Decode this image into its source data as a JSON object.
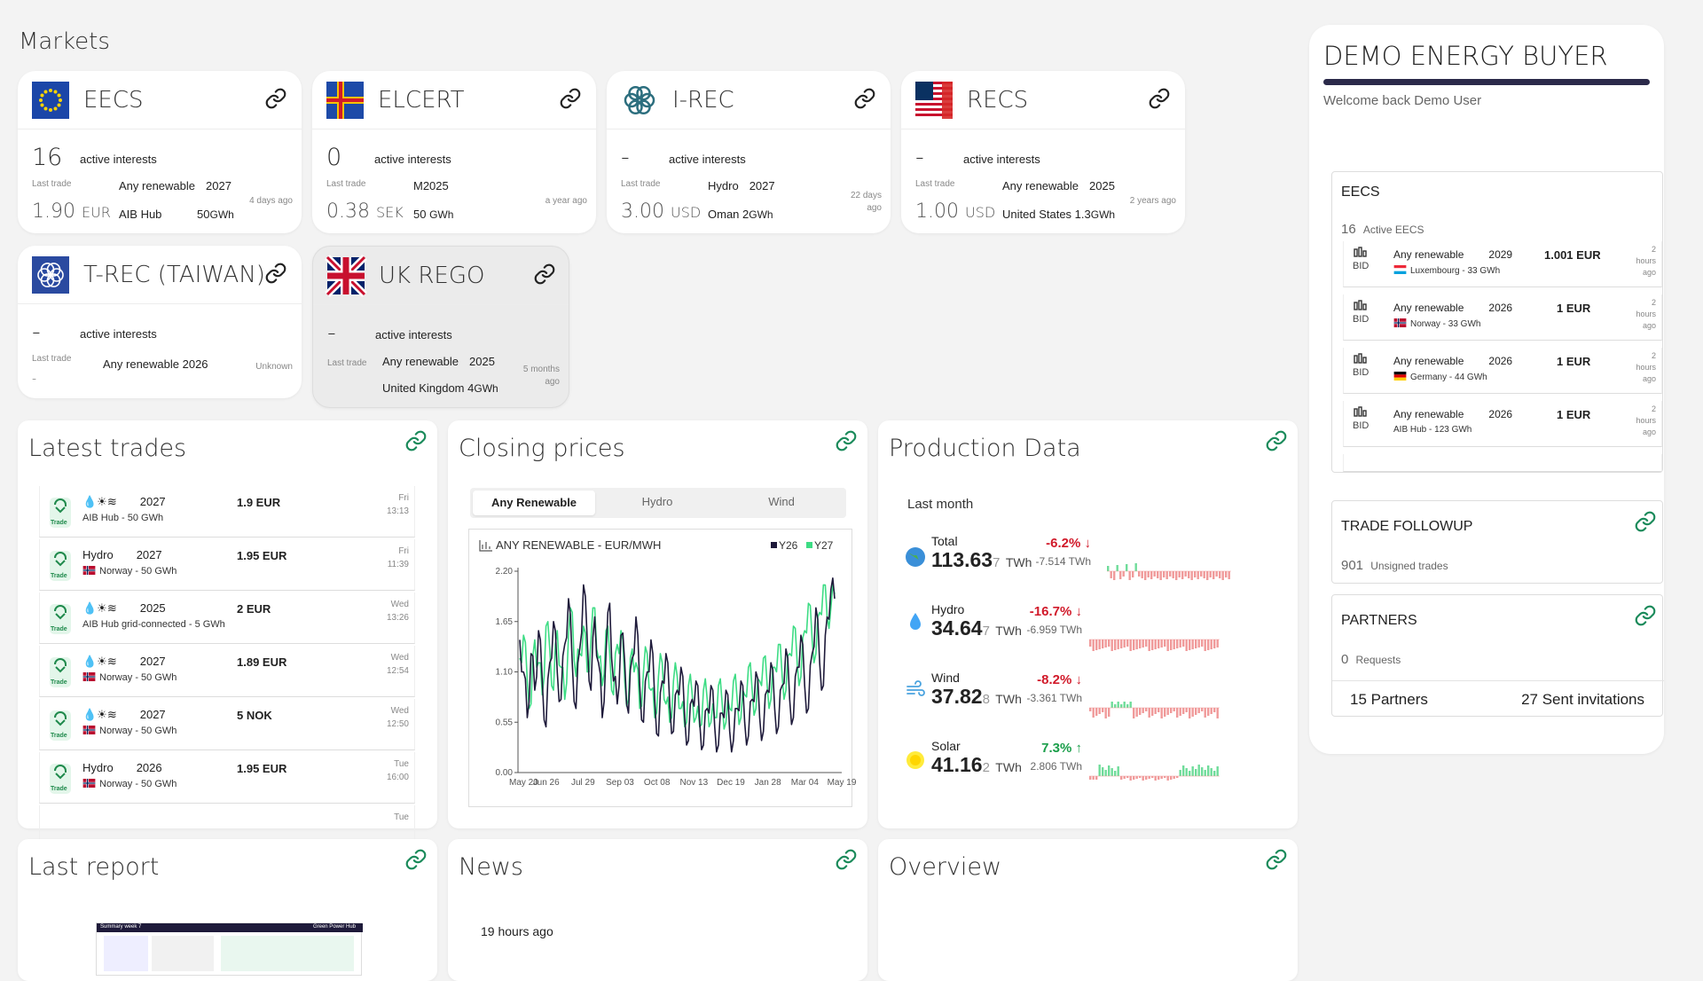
{
  "page_title": "Markets",
  "markets": [
    {
      "name": "EECS",
      "count": "16",
      "active_label": "active interests",
      "last_trade_label": "Last trade",
      "price": "1.90",
      "currency": "EUR",
      "product": "Any renewable",
      "year": "2027",
      "hub": "AIB Hub",
      "volume": "50",
      "unit": "GWh",
      "ago": "4 days ago"
    },
    {
      "name": "ELCERT",
      "count": "0",
      "active_label": "active interests",
      "last_trade_label": "Last trade",
      "price": "0.38",
      "currency": "SEK",
      "product": "M2025",
      "year": "",
      "hub": "50",
      "volume": "",
      "unit": "GWh",
      "ago": "a year ago"
    },
    {
      "name": "I-REC",
      "count": "-",
      "active_label": "active interests",
      "last_trade_label": "Last trade",
      "price": "3.00",
      "currency": "USD",
      "product": "Hydro",
      "year": "2027",
      "hub": "Oman",
      "volume": "2",
      "unit": "GWh",
      "ago": "22 days ago"
    },
    {
      "name": "RECS",
      "count": "-",
      "active_label": "active interests",
      "last_trade_label": "Last trade",
      "price": "1.00",
      "currency": "USD",
      "product": "Any renewable",
      "year": "2025",
      "hub": "United States",
      "volume": "1.3",
      "unit": "GWh",
      "ago": "2 years ago"
    },
    {
      "name": "T-REC (TAIWAN)",
      "count": "-",
      "active_label": "active interests",
      "last_trade_label": "Last trade",
      "price": "-",
      "currency": "",
      "product": "Any renewable 2026",
      "year": "",
      "hub": "",
      "volume": "",
      "unit": "",
      "ago": "Unknown"
    },
    {
      "name": "UK REGO",
      "count": "-",
      "active_label": "active interests",
      "last_trade_label": "Last trade",
      "price": "",
      "currency": "",
      "product": "Any renewable",
      "year": "2025",
      "hub": "United Kingdom",
      "volume": "4",
      "unit": "GWh",
      "ago": "5 months ago"
    }
  ],
  "latest_trades": {
    "title": "Latest trades",
    "badge": "Trade",
    "rows": [
      {
        "product": "💧☀≋",
        "year": "2027",
        "sub": "AIB Hub - 50 GWh",
        "price": "1.9 EUR",
        "day": "Fri",
        "time": "13:13",
        "flag": "none"
      },
      {
        "product": "Hydro",
        "year": "2027",
        "sub": "Norway - 50 GWh",
        "price": "1.95 EUR",
        "day": "Fri",
        "time": "11:39",
        "flag": "no"
      },
      {
        "product": "💧☀≋",
        "year": "2025",
        "sub": "AIB Hub grid-connected - 5 GWh",
        "price": "2 EUR",
        "day": "Wed",
        "time": "13:26",
        "flag": "none"
      },
      {
        "product": "💧☀≋",
        "year": "2027",
        "sub": "Norway - 50 GWh",
        "price": "1.89 EUR",
        "day": "Wed",
        "time": "12:54",
        "flag": "no"
      },
      {
        "product": "💧☀≋",
        "year": "2027",
        "sub": "Norway - 50 GWh",
        "price": "5 NOK",
        "day": "Wed",
        "time": "12:50",
        "flag": "no"
      },
      {
        "product": "Hydro",
        "year": "2026",
        "sub": "Norway - 50 GWh",
        "price": "1.95 EUR",
        "day": "Tue",
        "time": "16:00",
        "flag": "no"
      }
    ],
    "partial_day": "Tue"
  },
  "closing_prices": {
    "title": "Closing prices",
    "tabs": [
      "Any Renewable",
      "Hydro",
      "Wind"
    ],
    "active_tab": 0
  },
  "chart_data": {
    "type": "line",
    "title": "ANY RENEWABLE - EUR/MWH",
    "xlabel": "",
    "ylabel": "",
    "ylim": [
      0,
      2.2
    ],
    "yticks": [
      "0.00",
      "0.55",
      "1.10",
      "1.65",
      "2.20"
    ],
    "xticks": [
      "May 20",
      "Jun 26",
      "Jul 29",
      "Sep 03",
      "Oct 08",
      "Nov 13",
      "Dec 19",
      "Jan 28",
      "Mar 04",
      "May 19"
    ],
    "legend_position": "top-right",
    "series": [
      {
        "name": "Y26",
        "color": "#1e1a3a",
        "values": [
          1.45,
          1.1,
          0.6,
          1.3,
          0.9,
          1.55,
          1.0,
          0.5,
          1.2,
          1.65,
          1.1,
          0.8,
          1.4,
          1.9,
          1.2,
          0.7,
          1.35,
          2.05,
          1.45,
          0.9,
          1.7,
          1.2,
          0.6,
          1.3,
          1.85,
          1.0,
          0.75,
          1.5,
          1.2,
          0.65,
          1.25,
          1.7,
          0.95,
          0.55,
          1.1,
          1.45,
          0.8,
          0.4,
          1.0,
          1.3,
          0.75,
          0.45,
          0.9,
          1.15,
          0.6,
          0.35,
          0.8,
          1.0,
          0.55,
          0.3,
          0.7,
          0.95,
          0.5,
          0.3,
          0.65,
          0.9,
          0.45,
          0.35,
          0.7,
          1.0,
          0.55,
          0.4,
          0.8,
          1.1,
          0.6,
          0.45,
          0.9,
          1.2,
          0.7,
          0.5,
          0.95,
          1.35,
          0.8,
          0.6,
          1.15,
          1.5,
          0.95,
          0.7,
          1.3,
          1.8,
          1.2,
          0.95,
          1.7,
          2.0,
          1.9
        ]
      },
      {
        "name": "Y27",
        "color": "#3ddc84",
        "values": [
          1.25,
          1.5,
          1.0,
          0.75,
          1.45,
          1.2,
          0.85,
          1.6,
          1.35,
          0.9,
          1.55,
          1.15,
          0.8,
          1.5,
          1.75,
          1.05,
          1.3,
          1.6,
          1.1,
          1.45,
          1.8,
          1.25,
          0.95,
          1.55,
          1.3,
          0.85,
          1.4,
          1.55,
          1.0,
          0.8,
          1.35,
          1.2,
          0.7,
          1.1,
          1.3,
          0.9,
          0.6,
          1.05,
          1.2,
          0.75,
          0.55,
          1.0,
          1.05,
          0.7,
          0.5,
          0.95,
          0.85,
          0.6,
          0.5,
          0.9,
          0.8,
          0.55,
          0.6,
          0.95,
          0.75,
          0.55,
          0.7,
          1.0,
          0.8,
          0.6,
          0.85,
          1.15,
          0.9,
          0.7,
          1.0,
          1.25,
          0.95,
          0.8,
          1.15,
          1.4,
          1.05,
          0.9,
          1.3,
          1.6,
          1.2,
          1.05,
          1.55,
          1.85,
          1.45,
          1.3,
          1.75,
          2.05,
          1.7,
          1.8,
          1.95
        ]
      }
    ]
  },
  "production": {
    "title": "Production Data",
    "period": "Last month",
    "unit": "TWh",
    "rows": [
      {
        "name": "Total",
        "int": "113.63",
        "dim": "7",
        "change": "-6.2%",
        "dir": "down",
        "delta": "-7.514 TWh",
        "color": "#d11a2a"
      },
      {
        "name": "Hydro",
        "int": "34.64",
        "dim": "7",
        "change": "-16.7%",
        "dir": "down",
        "delta": "-6.959 TWh",
        "color": "#d11a2a"
      },
      {
        "name": "Wind",
        "int": "37.82",
        "dim": "8",
        "change": "-8.2%",
        "dir": "down",
        "delta": "-3.361 TWh",
        "color": "#d11a2a"
      },
      {
        "name": "Solar",
        "int": "41.16",
        "dim": "2",
        "change": "7.3%",
        "dir": "up",
        "delta": "2.806 TWh",
        "color": "#1a9e4a"
      }
    ]
  },
  "last_report": {
    "title": "Last report",
    "thumb_title": "Summary week 7",
    "thumb_brand": "Green Power Hub"
  },
  "news": {
    "title": "News",
    "time": "19 hours ago"
  },
  "overview": {
    "title": "Overview"
  },
  "buyer": {
    "title": "DEMO ENERGY BUYER",
    "welcome": "Welcome back Demo User",
    "eecs_title": "EECS",
    "eecs_count": "16",
    "eecs_label": "Active EECS",
    "bids": [
      {
        "type": "BID",
        "product": "Any renewable",
        "year": "2029",
        "sub": "Luxembourg - 33 GWh",
        "price": "1.001 EUR",
        "flag": "lu",
        "ago": [
          "2",
          "hours",
          "ago"
        ]
      },
      {
        "type": "BID",
        "product": "Any renewable",
        "year": "2026",
        "sub": "Norway - 33 GWh",
        "price": "1 EUR",
        "flag": "no",
        "ago": [
          "2",
          "hours",
          "ago"
        ]
      },
      {
        "type": "BID",
        "product": "Any renewable",
        "year": "2026",
        "sub": "Germany - 44 GWh",
        "price": "1 EUR",
        "flag": "de",
        "ago": [
          "2",
          "hours",
          "ago"
        ]
      },
      {
        "type": "BID",
        "product": "Any renewable",
        "year": "2026",
        "sub": "AIB Hub - 123 GWh",
        "price": "1 EUR",
        "flag": "none",
        "ago": [
          "2",
          "hours",
          "ago"
        ]
      }
    ],
    "trade_followup": {
      "title": "TRADE FOLLOWUP",
      "count": "901",
      "label": "Unsigned trades"
    },
    "partners": {
      "title": "PARTNERS",
      "count": "0",
      "label": "Requests",
      "partners": "15 Partners",
      "invites": "27 Sent invitations"
    }
  },
  "colors": {
    "accent": "#2b2a4a",
    "green": "#3ddc84",
    "red": "#d11a2a"
  }
}
